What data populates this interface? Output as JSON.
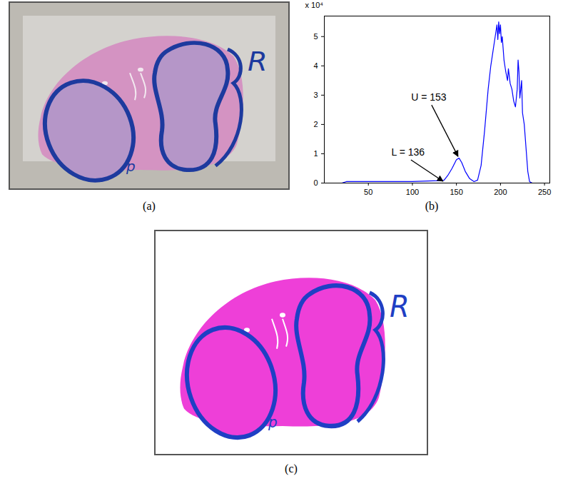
{
  "chart_data": {
    "type": "line",
    "color": "#0000ff",
    "x": [
      0,
      20,
      25,
      50,
      100,
      130,
      136,
      140,
      145,
      150,
      153,
      156,
      160,
      165,
      170,
      174,
      178,
      182,
      186,
      189,
      192,
      194,
      196,
      197,
      198,
      199,
      200,
      201,
      202,
      204,
      206,
      208,
      209,
      211,
      213,
      215,
      217,
      219,
      220,
      221,
      222,
      224,
      225,
      227,
      229,
      231,
      233,
      236,
      256
    ],
    "values": [
      0,
      0,
      0.05,
      0.05,
      0.05,
      0.08,
      0.1,
      0.25,
      0.5,
      0.8,
      0.85,
      0.7,
      0.4,
      0.15,
      0.05,
      0.1,
      0.6,
      1.8,
      3.2,
      4.0,
      4.6,
      5.0,
      5.4,
      4.9,
      5.5,
      5.1,
      5.4,
      4.8,
      5.0,
      4.2,
      3.8,
      3.5,
      3.9,
      3.4,
      3.2,
      2.8,
      2.6,
      3.2,
      4.2,
      3.8,
      2.9,
      3.5,
      2.4,
      2.0,
      1.2,
      0.4,
      0.05,
      0,
      0
    ],
    "xlim": [
      0,
      256
    ],
    "xticks": [
      50,
      100,
      150,
      200,
      250
    ],
    "ylim": [
      0,
      5.7
    ],
    "yticks": [
      0,
      1,
      2,
      3,
      4,
      5
    ],
    "ylabel": "x 10⁴",
    "grid": false,
    "annotations": [
      {
        "text": "U = 153",
        "x": 153,
        "y": 0.85
      },
      {
        "text": "L = 136",
        "x": 136,
        "y": 0
      }
    ]
  },
  "panels": [
    {
      "caption": "(a)",
      "marks": [
        "R",
        "p"
      ]
    },
    {
      "caption": "(b)"
    },
    {
      "caption": "(c)",
      "marks": [
        "R",
        "p"
      ]
    }
  ]
}
